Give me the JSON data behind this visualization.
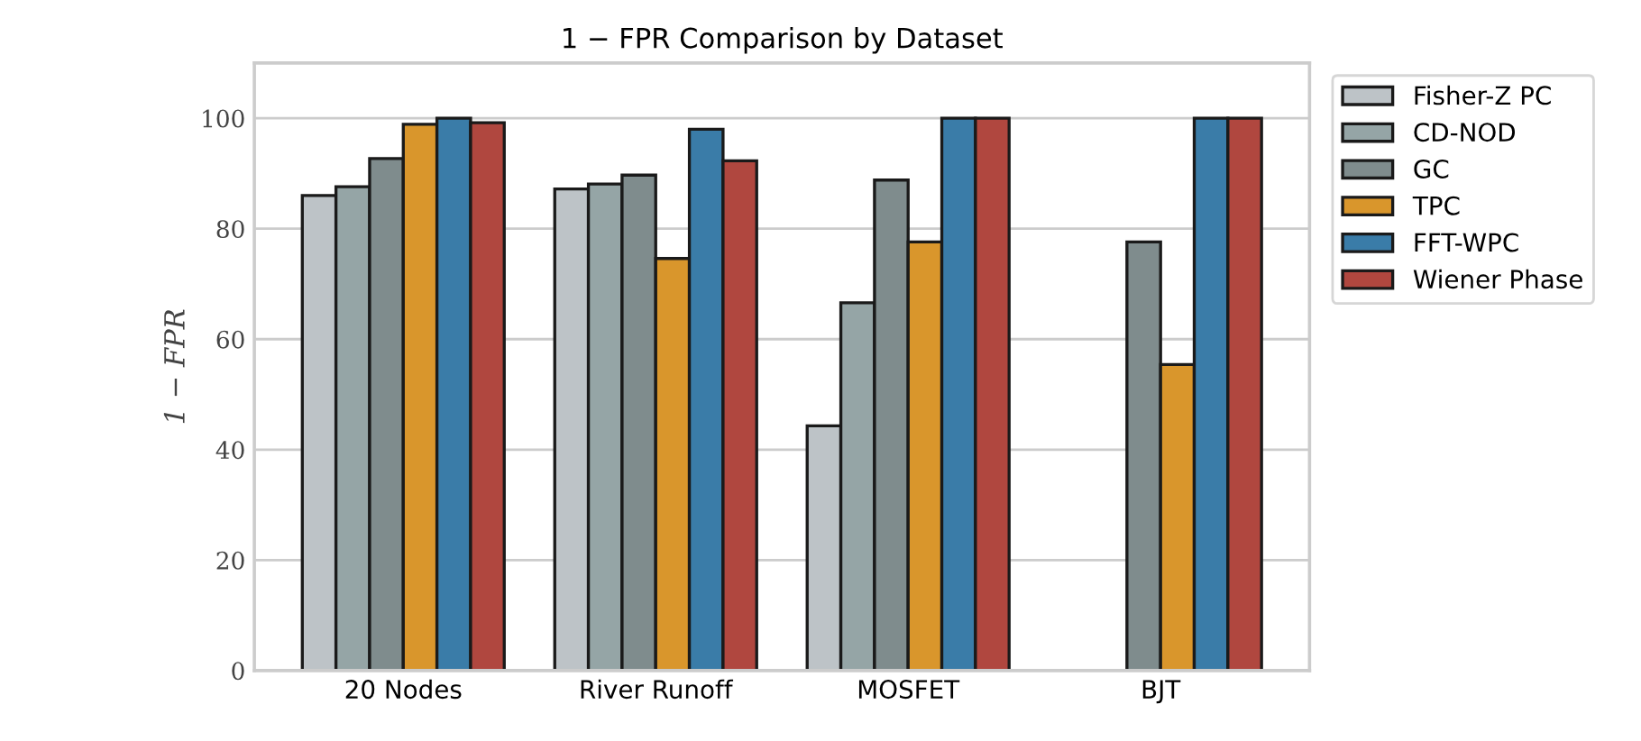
{
  "chart_data": {
    "type": "bar",
    "title": "1 − FPR Comparison by Dataset",
    "ylabel": "1 − FPR",
    "categories": [
      "20 Nodes",
      "River Runoff",
      "MOSFET",
      "BJT"
    ],
    "series": [
      {
        "name": "Fisher-Z PC",
        "color": "#bdc3c7",
        "values": [
          86.0,
          87.2,
          44.3,
          null
        ]
      },
      {
        "name": "CD-NOD",
        "color": "#95a5a6",
        "values": [
          87.6,
          88.1,
          66.6,
          null
        ]
      },
      {
        "name": "GC",
        "color": "#7f8c8d",
        "values": [
          92.7,
          89.7,
          88.8,
          77.6
        ]
      },
      {
        "name": "TPC",
        "color": "#d9962c",
        "values": [
          98.9,
          74.6,
          77.6,
          55.4
        ]
      },
      {
        "name": "FFT-WPC",
        "color": "#3a7ca8",
        "values": [
          100,
          98.0,
          100,
          100
        ]
      },
      {
        "name": "Wiener Phase",
        "color": "#b0473f",
        "values": [
          99.2,
          92.3,
          100,
          100
        ]
      }
    ],
    "ylim": [
      0,
      110
    ],
    "yticks": [
      0,
      20,
      40,
      60,
      80,
      100
    ],
    "grid": "y",
    "legend": "top right"
  }
}
